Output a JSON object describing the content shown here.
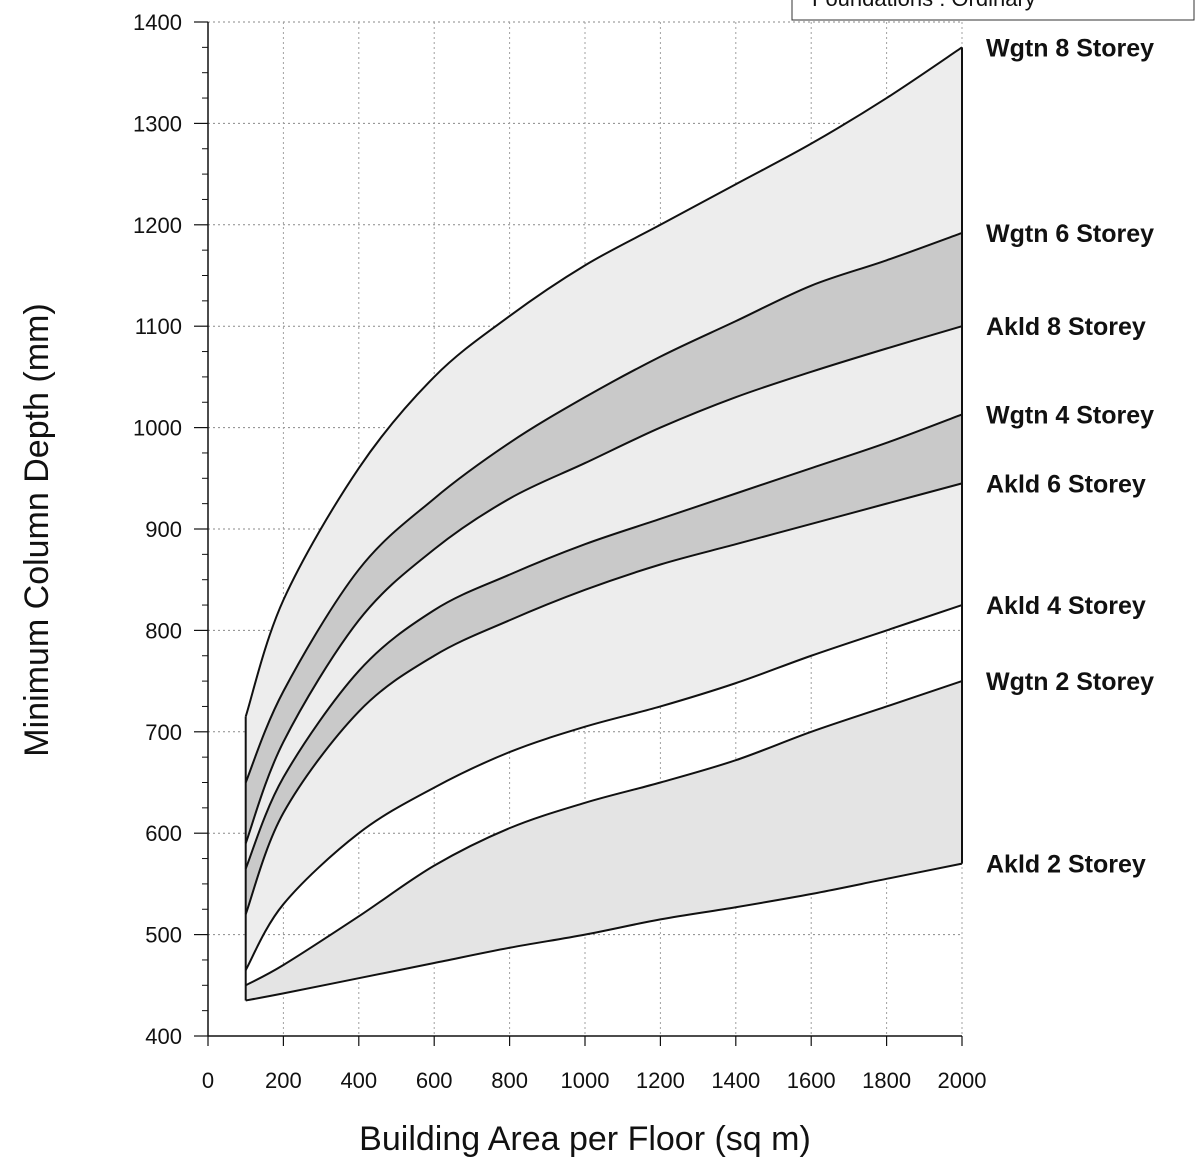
{
  "chart_data": {
    "type": "area",
    "xlabel": "Building Area per Floor (sq m)",
    "ylabel": "Minimum Column Depth (mm)",
    "xlim": [
      0,
      2000
    ],
    "ylim": [
      400,
      1400
    ],
    "x_ticks": [
      0,
      200,
      400,
      600,
      800,
      1000,
      1200,
      1400,
      1600,
      1800,
      2000
    ],
    "y_ticks": [
      400,
      500,
      600,
      700,
      800,
      900,
      1000,
      1100,
      1200,
      1300,
      1400
    ],
    "grid": true,
    "note": "Foundations : Ordinary",
    "x": [
      100,
      200,
      400,
      600,
      800,
      1000,
      1200,
      1400,
      1600,
      1800,
      2000
    ],
    "series": [
      {
        "name": "Wgtn 8 Storey",
        "values": [
          715,
          830,
          960,
          1050,
          1110,
          1160,
          1200,
          1240,
          1280,
          1325,
          1375
        ]
      },
      {
        "name": "Wgtn 6 Storey",
        "values": [
          650,
          740,
          860,
          930,
          985,
          1030,
          1070,
          1105,
          1140,
          1165,
          1192
        ]
      },
      {
        "name": "Akld 8 Storey",
        "values": [
          590,
          690,
          810,
          880,
          930,
          965,
          1000,
          1030,
          1055,
          1078,
          1100
        ]
      },
      {
        "name": "Wgtn 4 Storey",
        "values": [
          565,
          655,
          760,
          820,
          855,
          885,
          910,
          935,
          960,
          985,
          1013
        ]
      },
      {
        "name": "Akld 6 Storey",
        "values": [
          520,
          620,
          720,
          775,
          810,
          840,
          865,
          885,
          905,
          925,
          945
        ]
      },
      {
        "name": "Akld 4 Storey",
        "values": [
          465,
          530,
          600,
          645,
          680,
          705,
          725,
          748,
          775,
          800,
          825
        ]
      },
      {
        "name": "Wgtn 2 Storey",
        "values": [
          450,
          470,
          518,
          568,
          605,
          630,
          650,
          672,
          700,
          725,
          750
        ]
      },
      {
        "name": "Akld 2 Storey",
        "values": [
          435,
          442,
          457,
          472,
          487,
          500,
          515,
          527,
          540,
          555,
          570
        ]
      }
    ],
    "bands": [
      {
        "upper": "Wgtn 8 Storey",
        "lower": "Wgtn 6 Storey",
        "shade": "#ededed"
      },
      {
        "upper": "Wgtn 6 Storey",
        "lower": "Akld 8 Storey",
        "shade": "#c9c9c9"
      },
      {
        "upper": "Akld 8 Storey",
        "lower": "Wgtn 4 Storey",
        "shade": "#ededed"
      },
      {
        "upper": "Wgtn 4 Storey",
        "lower": "Akld 6 Storey",
        "shade": "#c9c9c9"
      },
      {
        "upper": "Akld 6 Storey",
        "lower": "Akld 4 Storey",
        "shade": "#ededed"
      },
      {
        "upper": "Wgtn 2 Storey",
        "lower": "Akld 2 Storey",
        "shade": "#e4e4e4"
      }
    ]
  }
}
